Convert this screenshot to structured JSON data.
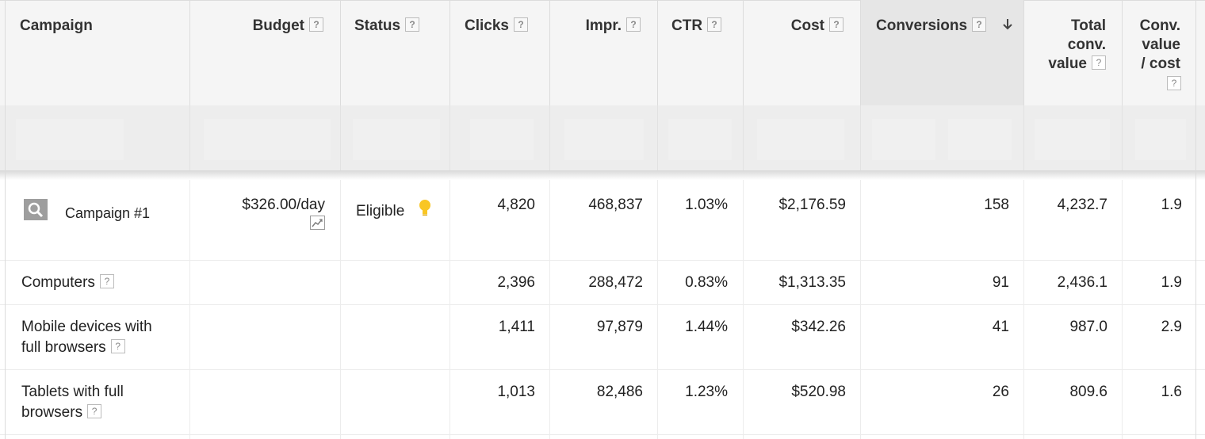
{
  "columns": {
    "campaign": "Campaign",
    "budget": "Budget",
    "status": "Status",
    "clicks": "Clicks",
    "impr": "Impr.",
    "ctr": "CTR",
    "cost": "Cost",
    "conversions": "Conversions",
    "total_conv_value": [
      "Total",
      "conv.",
      "value"
    ],
    "conv_value_cost": [
      "Conv.",
      "value",
      "/ cost"
    ],
    "help_glyph": "?",
    "sort_indicator": "arrow-down-icon"
  },
  "rows": [
    {
      "campaign": "Campaign #1",
      "campaign_icon": "search-icon",
      "budget": "$326.00/day",
      "budget_icon": "trend-chart-icon",
      "status": "Eligible",
      "status_icon": "lightbulb-icon",
      "clicks": "4,820",
      "impr": "468,837",
      "ctr": "1.03%",
      "cost": "$2,176.59",
      "conversions": "158",
      "total_conv_value": "4,232.7",
      "conv_value_cost": "1.9"
    },
    {
      "campaign": "Computers",
      "clicks": "2,396",
      "impr": "288,472",
      "ctr": "0.83%",
      "cost": "$1,313.35",
      "conversions": "91",
      "total_conv_value": "2,436.1",
      "conv_value_cost": "1.9"
    },
    {
      "campaign_lines": [
        "Mobile devices with",
        "full browsers"
      ],
      "clicks": "1,411",
      "impr": "97,879",
      "ctr": "1.44%",
      "cost": "$342.26",
      "conversions": "41",
      "total_conv_value": "987.0",
      "conv_value_cost": "2.9"
    },
    {
      "campaign_lines": [
        "Tablets with full",
        "browsers"
      ],
      "clicks": "1,013",
      "impr": "82,486",
      "ctr": "1.23%",
      "cost": "$520.98",
      "conversions": "26",
      "total_conv_value": "809.6",
      "conv_value_cost": "1.6"
    }
  ],
  "colors": {
    "header_bg": "#f5f5f5",
    "sorted_header_bg": "#e6e6e6",
    "grid_line": "#dcdcdc",
    "bulb_yellow": "#f9c623"
  }
}
